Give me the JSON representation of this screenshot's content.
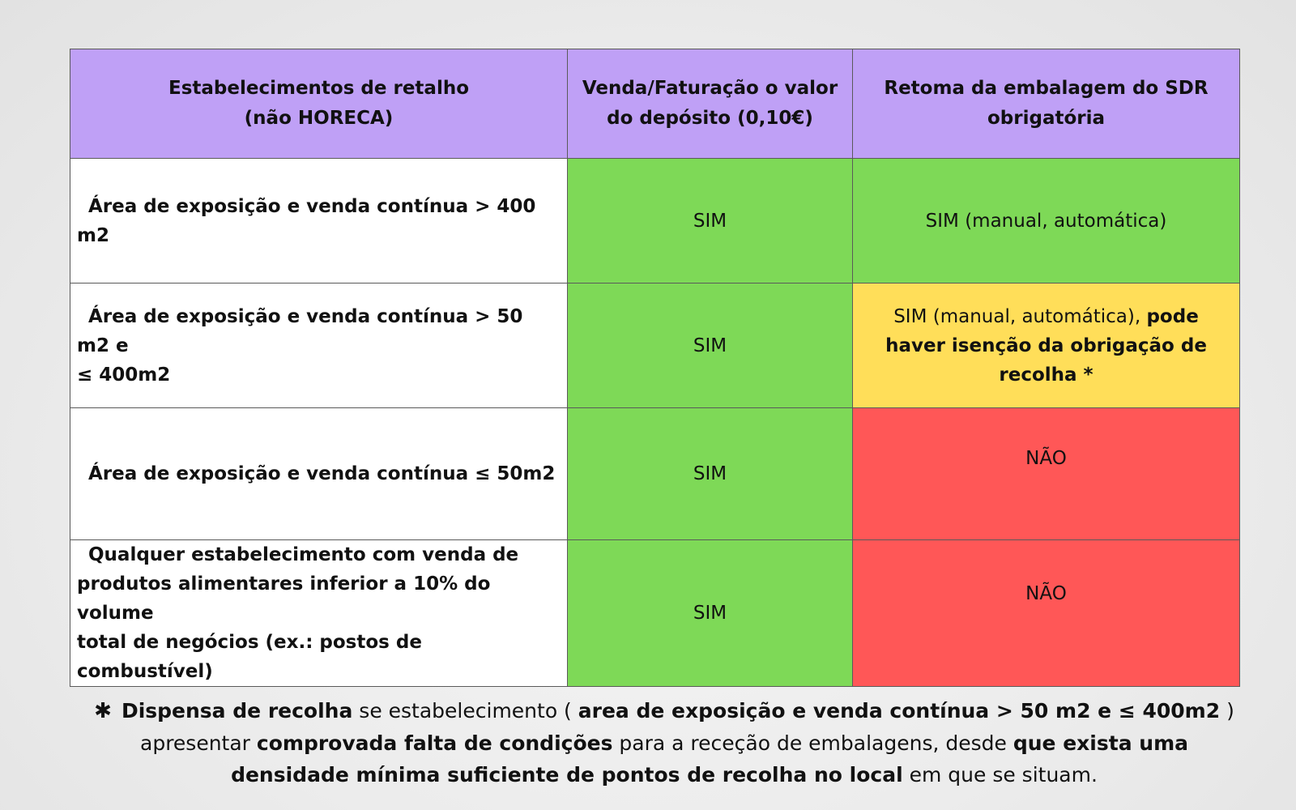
{
  "table": {
    "headers": [
      [
        "Estabelecimentos de retalho",
        "(não HORECA)"
      ],
      [
        "Venda/Faturação o valor",
        "do depósito (0,10€)"
      ],
      [
        "Retoma da embalagem do SDR",
        "obrigatória"
      ]
    ],
    "rows": [
      {
        "label": "Área de exposição e venda contínua > 400 m2",
        "sale": "SIM",
        "return_text": "SIM (manual,  automática)"
      },
      {
        "label_line1": "Área de exposição e venda contínua > 50 m2 e",
        "label_line2": "≤ 400m2",
        "sale": "SIM",
        "return_plain": "SIM (manual, automática),",
        "return_bold": "pode haver isenção da obrigação de recolha *"
      },
      {
        "label": "Área de exposição e venda contínua ≤ 50m2",
        "sale": "SIM",
        "return_text": "NÃO"
      },
      {
        "label_line1": "Qualquer estabelecimento com venda de",
        "label_line2": "produtos alimentares inferior a 10% do volume",
        "label_line3": "total de negócios (ex.: postos de combustível)",
        "sale": "SIM",
        "return_text": "NÃO"
      }
    ]
  },
  "footnote": {
    "star": "✱",
    "p1_bold": "Dispensa de recolha",
    "p2": " se estabelecimento ( ",
    "p3_bold": "area de exposição e venda contínua > 50 m2 e ≤ 400m2",
    "p4": " ) apresentar ",
    "p5_bold": "comprovada falta de condições",
    "p6": " para a receção de embalagens, desde ",
    "p7_bold": "que exista uma densidade mínima suficiente de pontos de recolha no local",
    "p8": " em que se situam."
  },
  "colors": {
    "header": "#bfa0f6",
    "green": "#7ed957",
    "yellow": "#ffde59",
    "red": "#ff5757"
  }
}
